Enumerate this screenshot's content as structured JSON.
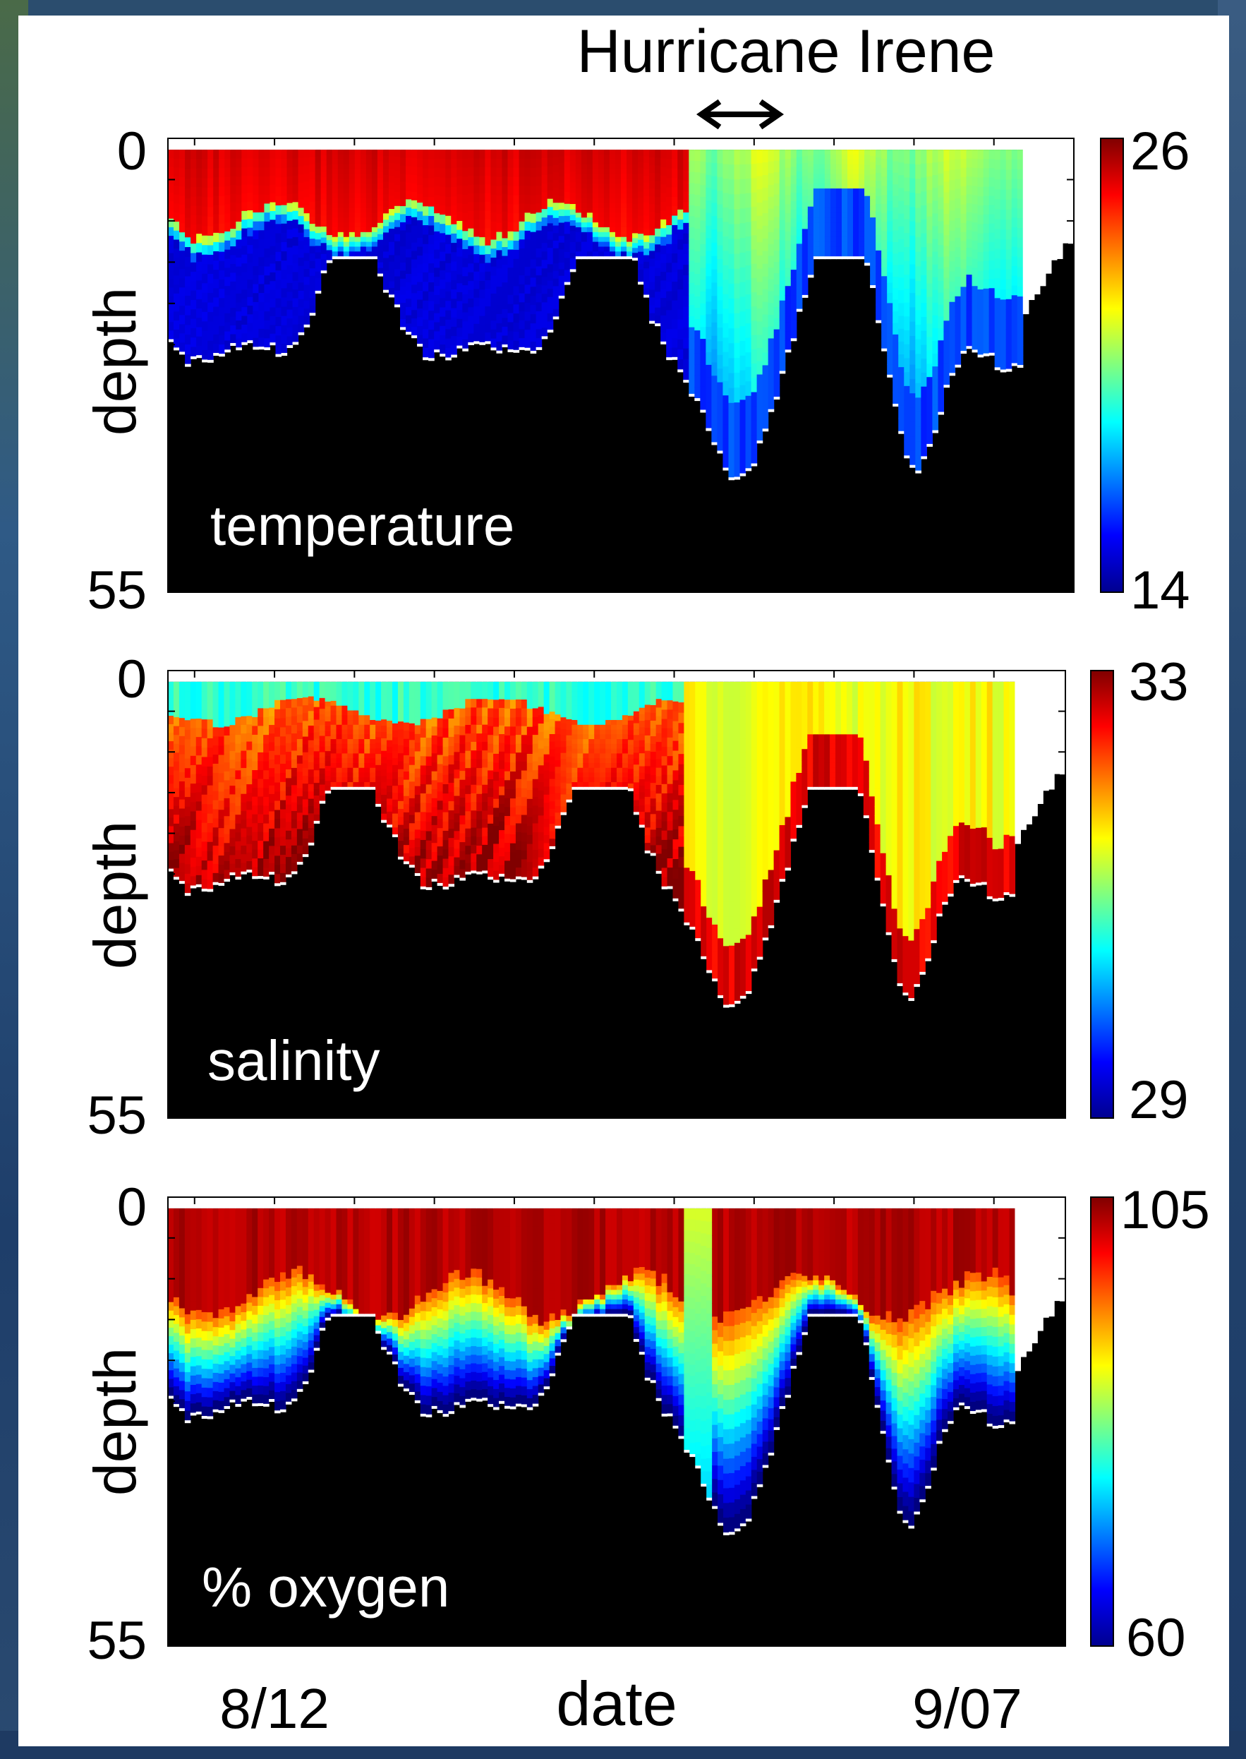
{
  "annotation": {
    "event_label": "Hurricane Irene",
    "arrow_symbol": "double-headed-arrow"
  },
  "x_axis": {
    "label": "date",
    "tick_labels": [
      {
        "text": "8/12",
        "day": 12
      },
      {
        "text": "9/07",
        "day": 38
      }
    ],
    "date_range_days": [
      8,
      42
    ],
    "event_window_days": [
      27.5,
      30.5
    ]
  },
  "colormap": "jet",
  "chart_data": [
    {
      "type": "heatmap",
      "variable": "temperature",
      "ylabel": "depth",
      "ylim": [
        0,
        55
      ],
      "y_ticks": [
        "0",
        "55"
      ],
      "colorbar": {
        "min": 14,
        "max": 26,
        "min_label": "14",
        "max_label": "26"
      }
    },
    {
      "type": "heatmap",
      "variable": "salinity",
      "ylabel": "depth",
      "ylim": [
        0,
        55
      ],
      "y_ticks": [
        "0",
        "55"
      ],
      "colorbar": {
        "min": 29,
        "max": 33,
        "min_label": "29",
        "max_label": "33"
      }
    },
    {
      "type": "heatmap",
      "variable": "% oxygen",
      "ylabel": "depth",
      "ylim": [
        0,
        55
      ],
      "y_ticks": [
        "0",
        "55"
      ],
      "colorbar": {
        "min": 60,
        "max": 105,
        "min_label": "60",
        "max_label": "105"
      }
    }
  ],
  "panel_labels": [
    "temperature",
    "salinity",
    "% oxygen"
  ]
}
